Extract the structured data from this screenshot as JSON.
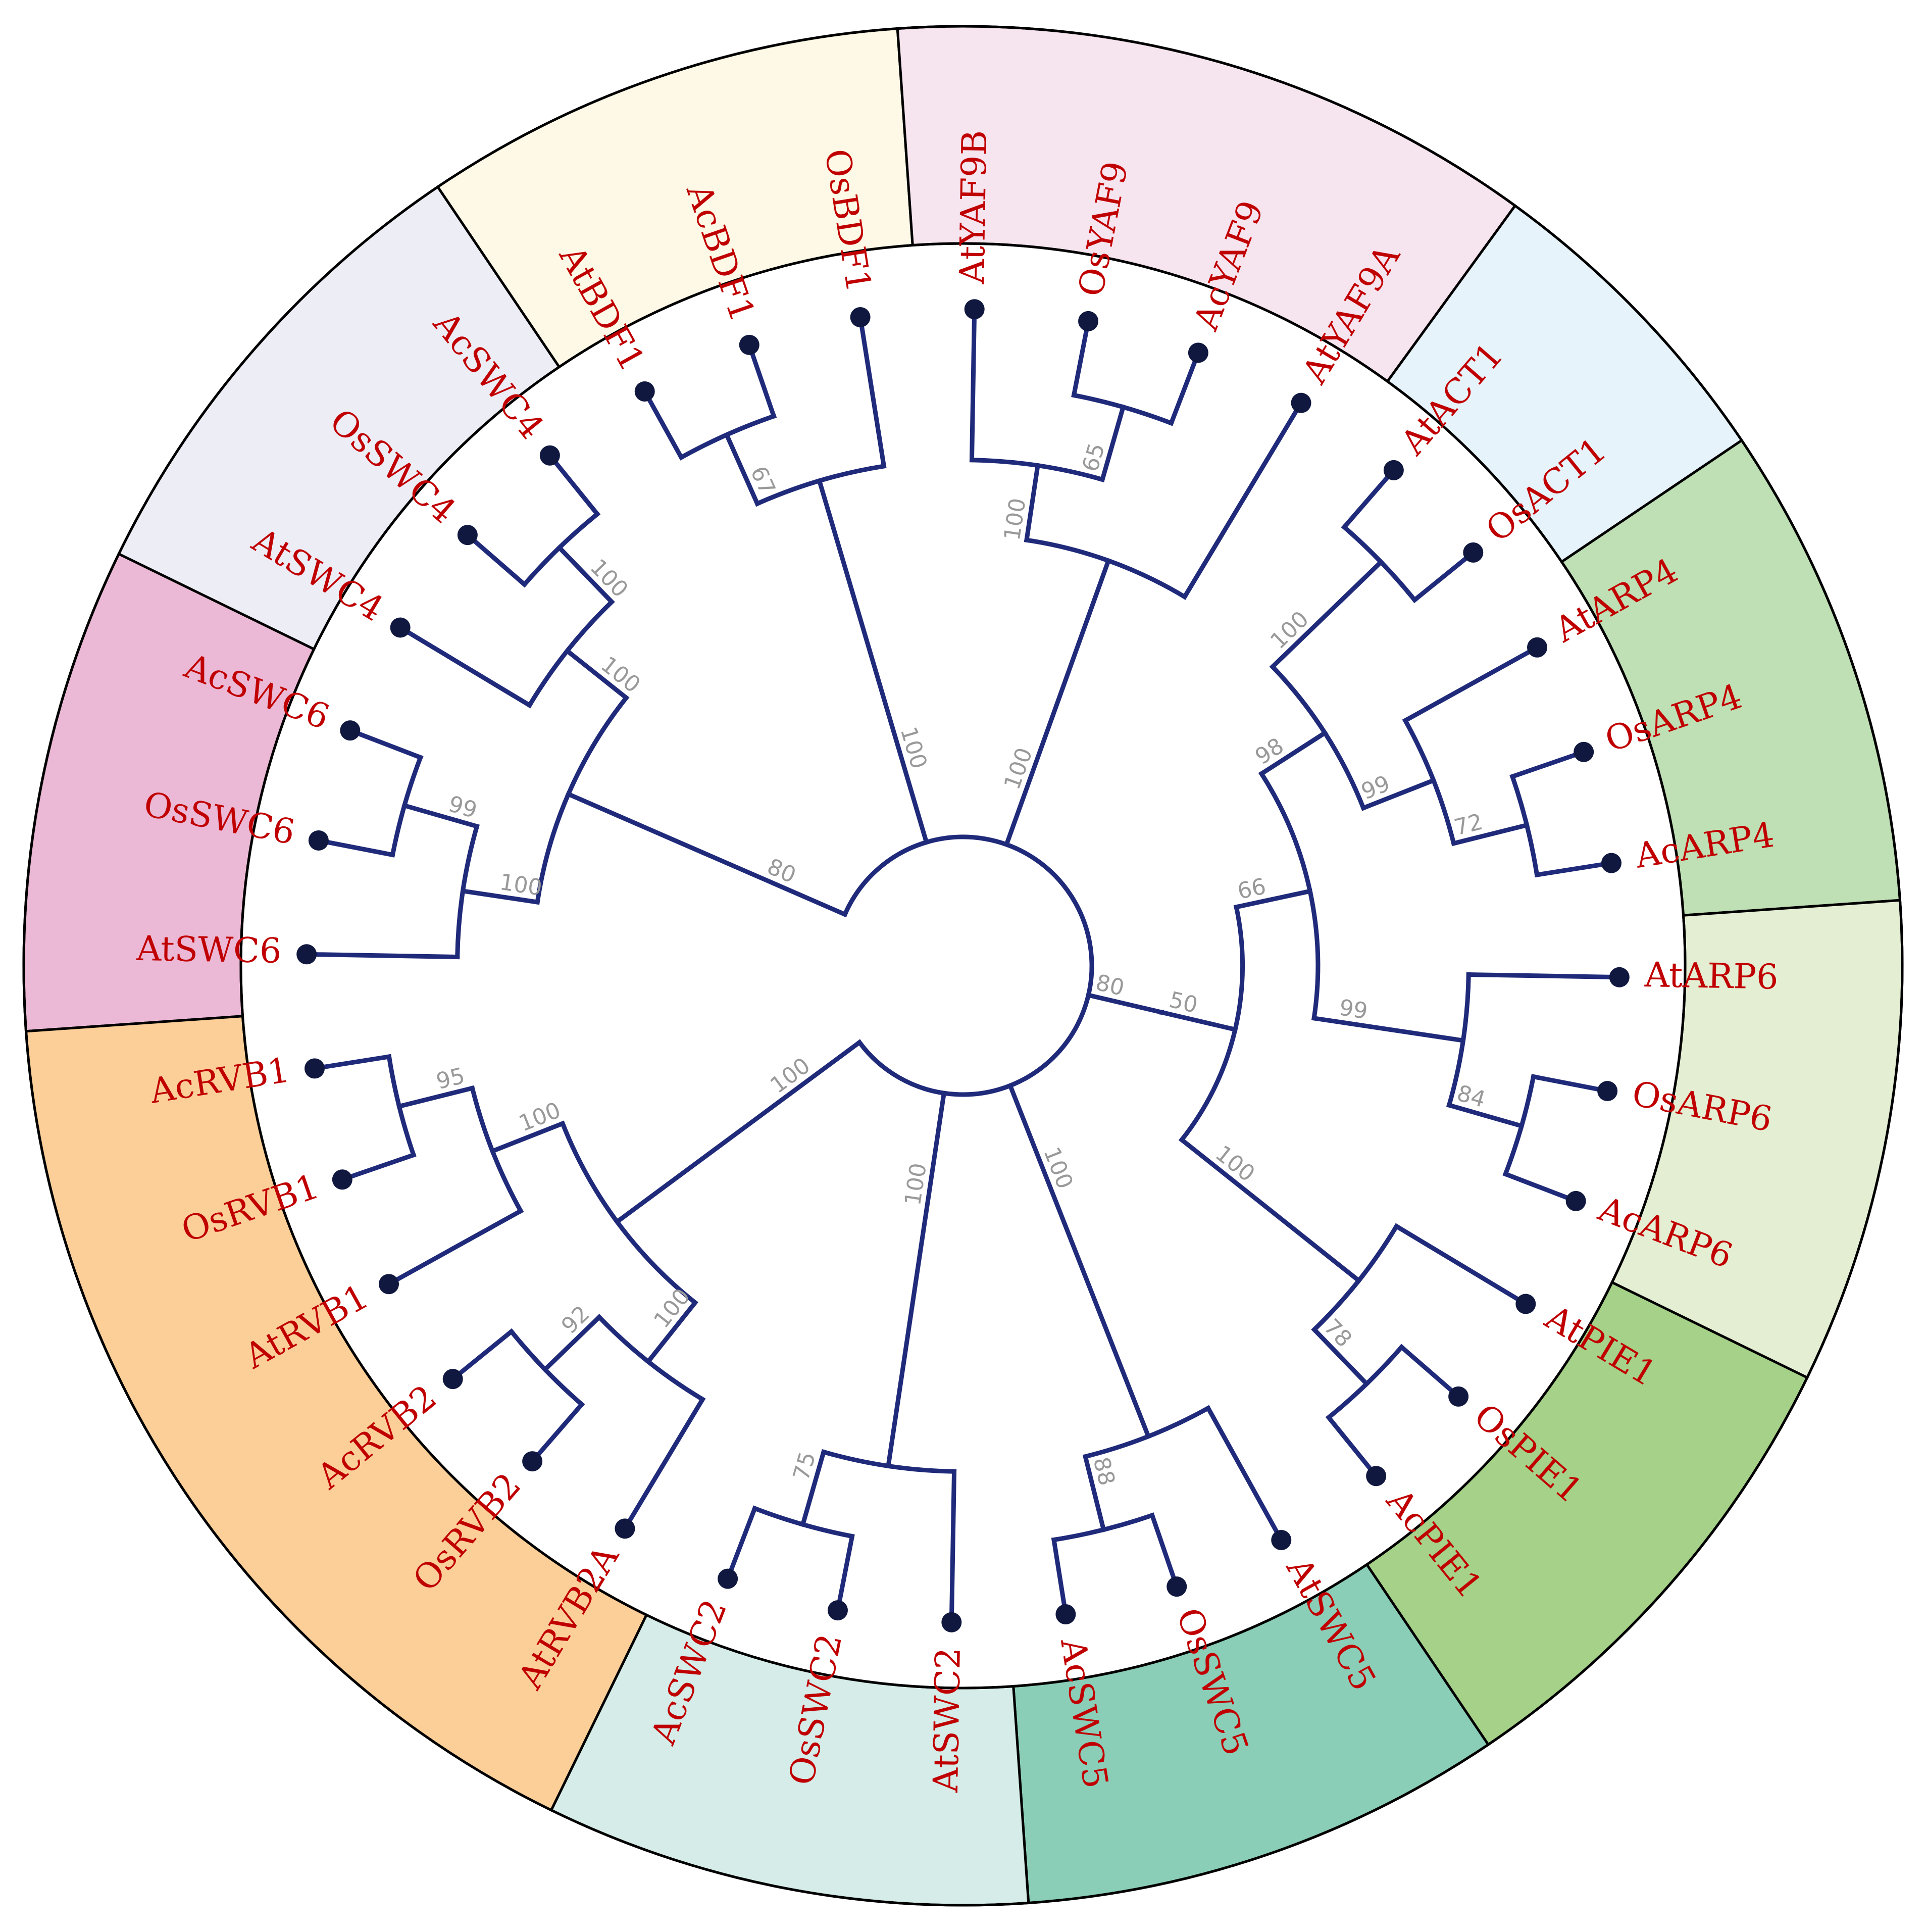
{
  "colors": {
    "label": "#c00000",
    "branch": "#1f2a7a",
    "tip": "#10183f",
    "bootstrap": "#999999"
  },
  "leaves": [
    {
      "name": "AtSWC6"
    },
    {
      "name": "OsSWC6"
    },
    {
      "name": "AcSWC6"
    },
    {
      "name": "AtSWC4"
    },
    {
      "name": "OsSWC4"
    },
    {
      "name": "AcSWC4"
    },
    {
      "name": "AtBDF1"
    },
    {
      "name": "AcBDF1"
    },
    {
      "name": "OsBDF1"
    },
    {
      "name": "AtYAF9B"
    },
    {
      "name": "OsYAF9"
    },
    {
      "name": "AcYAF9"
    },
    {
      "name": "AtYAF9A"
    },
    {
      "name": "AtACT1"
    },
    {
      "name": "OsACT1"
    },
    {
      "name": "AtARP4"
    },
    {
      "name": "OsARP4"
    },
    {
      "name": "AcARP4"
    },
    {
      "name": "AtARP6"
    },
    {
      "name": "OsARP6"
    },
    {
      "name": "AcARP6"
    },
    {
      "name": "AtPIE1"
    },
    {
      "name": "OsPIE1"
    },
    {
      "name": "AcPIE1"
    },
    {
      "name": "AtSWC5"
    },
    {
      "name": "OsSWC5"
    },
    {
      "name": "AcSWC5"
    },
    {
      "name": "AtSWC2"
    },
    {
      "name": "OsSWC2"
    },
    {
      "name": "AcSWC2"
    },
    {
      "name": "AtRVB2A"
    },
    {
      "name": "OsRVB2"
    },
    {
      "name": "AcRVB2"
    },
    {
      "name": "AtRVB1"
    },
    {
      "name": "OsRVB1"
    },
    {
      "name": "AcRVB1"
    }
  ],
  "groups": [
    {
      "id": "swc6",
      "color": "#ebb9d6",
      "leaves": [
        "AtSWC6",
        "OsSWC6",
        "AcSWC6"
      ]
    },
    {
      "id": "swc4",
      "color": "#ededf6",
      "leaves": [
        "AtSWC4",
        "OsSWC4",
        "AcSWC4"
      ]
    },
    {
      "id": "bdf1",
      "color": "#fdf9e6",
      "leaves": [
        "AtBDF1",
        "AcBDF1",
        "OsBDF1"
      ]
    },
    {
      "id": "yaf9",
      "color": "#f6e4ef",
      "leaves": [
        "AtYAF9B",
        "OsYAF9",
        "AcYAF9",
        "AtYAF9A"
      ]
    },
    {
      "id": "act1",
      "color": "#e7f3fb",
      "leaves": [
        "AtACT1",
        "OsACT1"
      ]
    },
    {
      "id": "arp4",
      "color": "#bfdfb4",
      "leaves": [
        "AtARP4",
        "OsARP4",
        "AcARP4"
      ]
    },
    {
      "id": "arp6",
      "color": "#e4eed3",
      "leaves": [
        "AtARP6",
        "OsARP6",
        "AcARP6"
      ]
    },
    {
      "id": "pie1",
      "color": "#a5d188",
      "leaves": [
        "AtPIE1",
        "OsPIE1",
        "AcPIE1"
      ]
    },
    {
      "id": "swc5",
      "color": "#8bceb8",
      "leaves": [
        "AtSWC5",
        "OsSWC5",
        "AcSWC5"
      ]
    },
    {
      "id": "swc2",
      "color": "#d5ece8",
      "leaves": [
        "AtSWC2",
        "OsSWC2",
        "AcSWC2"
      ]
    },
    {
      "id": "rvb",
      "color": "#fccf99",
      "leaves": [
        "AtRVB2A",
        "OsRVB2",
        "AcRVB2",
        "AtRVB1",
        "OsRVB1",
        "AcRVB1"
      ]
    }
  ],
  "tree": {
    "children": [
      {
        "support": "80",
        "children": [
          {
            "support": "100",
            "children": [
              {
                "leaf": "AtSWC6"
              },
              {
                "support": "99",
                "children": [
                  {
                    "leaf": "OsSWC6"
                  },
                  {
                    "leaf": "AcSWC6"
                  }
                ]
              }
            ]
          },
          {
            "support": "100",
            "children": [
              {
                "leaf": "AtSWC4"
              },
              {
                "support": "100",
                "children": [
                  {
                    "leaf": "OsSWC4"
                  },
                  {
                    "leaf": "AcSWC4"
                  }
                ]
              }
            ]
          }
        ]
      },
      {
        "support": "100",
        "children": [
          {
            "support": "67",
            "children": [
              {
                "leaf": "AtBDF1"
              },
              {
                "leaf": "AcBDF1"
              }
            ]
          },
          {
            "leaf": "OsBDF1"
          }
        ]
      },
      {
        "support": "100",
        "children": [
          {
            "support": "100",
            "children": [
              {
                "leaf": "AtYAF9B"
              },
              {
                "support": "65",
                "children": [
                  {
                    "leaf": "OsYAF9"
                  },
                  {
                    "leaf": "AcYAF9"
                  }
                ]
              }
            ]
          },
          {
            "leaf": "AtYAF9A"
          }
        ]
      },
      {
        "support": "80",
        "children": [
          {
            "support": "50",
            "children": [
              {
                "support": "66",
                "children": [
                  {
                    "support": "98",
                    "children": [
                      {
                        "support": "100",
                        "children": [
                          {
                            "leaf": "AtACT1"
                          },
                          {
                            "leaf": "OsACT1"
                          }
                        ]
                      },
                      {
                        "support": "99",
                        "children": [
                          {
                            "leaf": "AtARP4"
                          },
                          {
                            "support": "72",
                            "children": [
                              {
                                "leaf": "OsARP4"
                              },
                              {
                                "leaf": "AcARP4"
                              }
                            ]
                          }
                        ]
                      }
                    ]
                  },
                  {
                    "support": "99",
                    "children": [
                      {
                        "leaf": "AtARP6"
                      },
                      {
                        "support": "84",
                        "children": [
                          {
                            "leaf": "OsARP6"
                          },
                          {
                            "leaf": "AcARP6"
                          }
                        ]
                      }
                    ]
                  }
                ]
              },
              {
                "support": "100",
                "children": [
                  {
                    "leaf": "AtPIE1"
                  },
                  {
                    "support": "78",
                    "children": [
                      {
                        "leaf": "OsPIE1"
                      },
                      {
                        "leaf": "AcPIE1"
                      }
                    ]
                  }
                ]
              }
            ]
          }
        ]
      },
      {
        "support": "100",
        "children": [
          {
            "leaf": "AtSWC5"
          },
          {
            "support": "88",
            "children": [
              {
                "leaf": "OsSWC5"
              },
              {
                "leaf": "AcSWC5"
              }
            ]
          }
        ]
      },
      {
        "support": "100",
        "children": [
          {
            "leaf": "AtSWC2"
          },
          {
            "support": "75",
            "children": [
              {
                "leaf": "OsSWC2"
              },
              {
                "leaf": "AcSWC2"
              }
            ]
          }
        ]
      },
      {
        "support": "100",
        "children": [
          {
            "support": "100",
            "children": [
              {
                "leaf": "AtRVB2A"
              },
              {
                "support": "92",
                "children": [
                  {
                    "leaf": "OsRVB2"
                  },
                  {
                    "leaf": "AcRVB2"
                  }
                ]
              }
            ]
          },
          {
            "support": "100",
            "children": [
              {
                "leaf": "AtRVB1"
              },
              {
                "support": "95",
                "children": [
                  {
                    "leaf": "OsRVB1"
                  },
                  {
                    "leaf": "AcRVB1"
                  }
                ]
              }
            ]
          }
        ]
      }
    ]
  }
}
